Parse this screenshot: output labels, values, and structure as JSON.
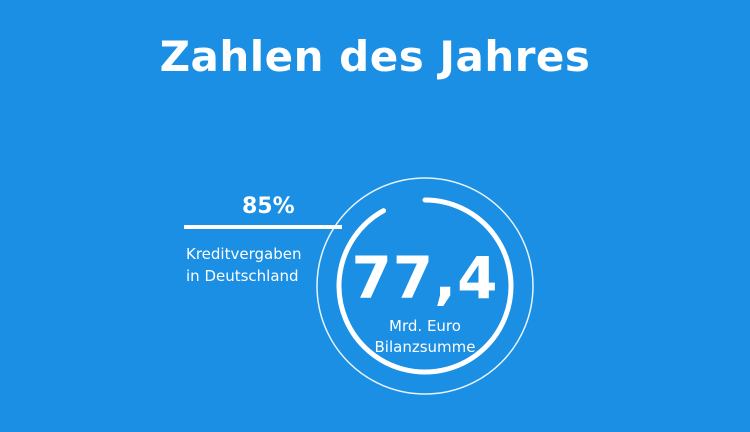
{
  "title": "Zahlen des Jahres",
  "colors": {
    "background": "#1a8fe3",
    "foreground": "#ffffff"
  },
  "stats": [
    {
      "value": "85%",
      "label_lines": [
        "Kreditvergaben",
        "in Deutschland"
      ]
    },
    {
      "value": "77,4",
      "label_lines": [
        "Mrd. Euro",
        "Bilanzsumme"
      ]
    }
  ],
  "ring_progress": 0.92
}
